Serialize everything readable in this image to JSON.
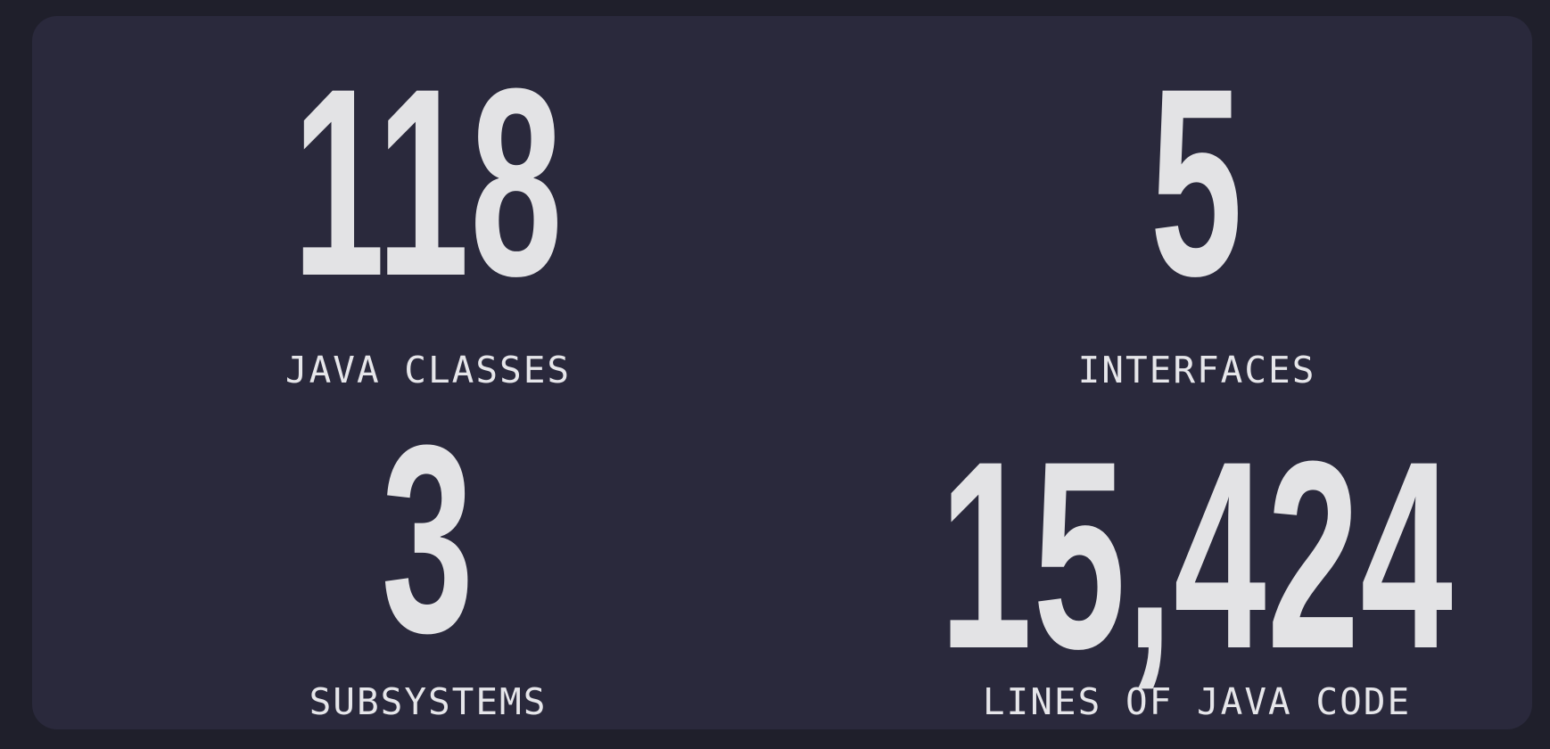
{
  "stats": [
    {
      "value": "118",
      "label": "JAVA CLASSES"
    },
    {
      "value": "5",
      "label": "INTERFACES"
    },
    {
      "value": "3",
      "label": "SUBSYSTEMS"
    },
    {
      "value": "15,424",
      "label": "LINES OF JAVA CODE"
    }
  ],
  "colors": {
    "page_background": "#1f1f2b",
    "panel_background": "#2a293c",
    "value_text": "#e3e3e5",
    "label_text": "#e6e6ea"
  }
}
